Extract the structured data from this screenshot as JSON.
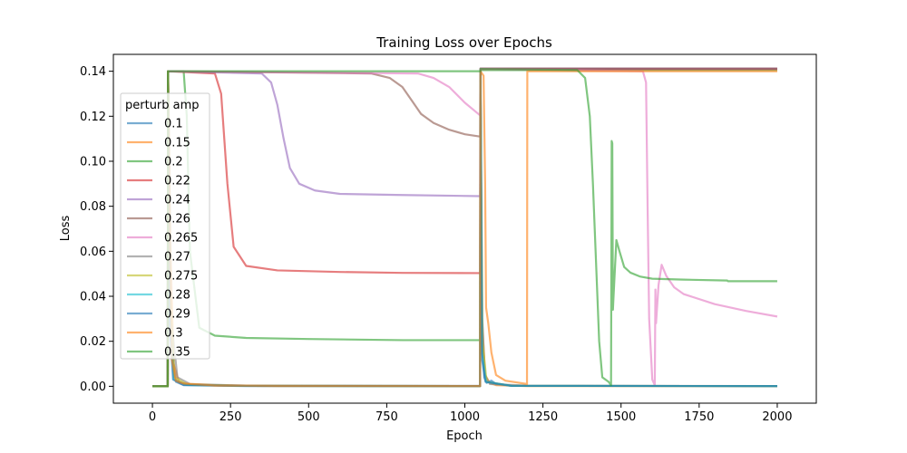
{
  "chart_data": {
    "type": "line",
    "title": "Training Loss over Epochs",
    "xlabel": "Epoch",
    "ylabel": "Loss",
    "xlim": [
      -125,
      2125
    ],
    "ylim": [
      -0.0075,
      0.1475
    ],
    "xticks": [
      0,
      250,
      500,
      750,
      1000,
      1250,
      1500,
      1750,
      2000
    ],
    "yticks": [
      0.0,
      0.02,
      0.04,
      0.06,
      0.08,
      0.1,
      0.12,
      0.14
    ],
    "ytick_labels": [
      "0.00",
      "0.02",
      "0.04",
      "0.06",
      "0.08",
      "0.10",
      "0.12",
      "0.14"
    ],
    "grid": false,
    "legend": {
      "title": "perturb amp",
      "position": "upper-left"
    },
    "series": [
      {
        "name": "0.1",
        "color": "#1f77b4",
        "points": [
          [
            0,
            0
          ],
          [
            49,
            0
          ],
          [
            50,
            0.14
          ],
          [
            60,
            0.02
          ],
          [
            75,
            0.002
          ],
          [
            100,
            0.0005
          ],
          [
            300,
            0.0001
          ],
          [
            1049,
            0.0001
          ],
          [
            1050,
            0.14
          ],
          [
            1055,
            0.02
          ],
          [
            1062,
            0.004
          ],
          [
            1070,
            0.0015
          ],
          [
            1085,
            0.0025
          ],
          [
            1100,
            0.001
          ],
          [
            1150,
            0.0002
          ],
          [
            2000,
            0.0001
          ]
        ]
      },
      {
        "name": "0.15",
        "color": "#ff7f0e",
        "points": [
          [
            0,
            0
          ],
          [
            49,
            0
          ],
          [
            50,
            0.14
          ],
          [
            58,
            0.06
          ],
          [
            68,
            0.01
          ],
          [
            85,
            0.0018
          ],
          [
            120,
            0.0008
          ],
          [
            200,
            0.0003
          ],
          [
            400,
            0.0001
          ],
          [
            1049,
            0.0001
          ],
          [
            1050,
            0.14
          ],
          [
            1055,
            0.03
          ],
          [
            1065,
            0.005
          ],
          [
            1080,
            0.0015
          ],
          [
            1100,
            0.0005
          ],
          [
            1200,
            0.0001
          ],
          [
            2000,
            0.0001
          ]
        ]
      },
      {
        "name": "0.2",
        "color": "#2ca02c",
        "points": [
          [
            0,
            0
          ],
          [
            49,
            0
          ],
          [
            50,
            0.14
          ],
          [
            100,
            0.14
          ],
          [
            110,
            0.12
          ],
          [
            120,
            0.06
          ],
          [
            150,
            0.026
          ],
          [
            200,
            0.0225
          ],
          [
            300,
            0.0215
          ],
          [
            500,
            0.021
          ],
          [
            800,
            0.0205
          ],
          [
            1048,
            0.0205
          ],
          [
            1049,
            0.0205
          ],
          [
            1050,
            0.1405
          ],
          [
            2000,
            0.1405
          ]
        ]
      },
      {
        "name": "0.22",
        "color": "#d62728",
        "points": [
          [
            0,
            0
          ],
          [
            49,
            0
          ],
          [
            50,
            0.14
          ],
          [
            200,
            0.139
          ],
          [
            220,
            0.13
          ],
          [
            240,
            0.09
          ],
          [
            260,
            0.062
          ],
          [
            300,
            0.0535
          ],
          [
            400,
            0.0515
          ],
          [
            600,
            0.0508
          ],
          [
            800,
            0.0504
          ],
          [
            1048,
            0.0503
          ],
          [
            1049,
            0.0503
          ],
          [
            1050,
            0.141
          ],
          [
            2000,
            0.141
          ]
        ]
      },
      {
        "name": "0.24",
        "color": "#9467bd",
        "points": [
          [
            0,
            0
          ],
          [
            49,
            0
          ],
          [
            50,
            0.14
          ],
          [
            350,
            0.139
          ],
          [
            380,
            0.135
          ],
          [
            400,
            0.125
          ],
          [
            420,
            0.11
          ],
          [
            440,
            0.097
          ],
          [
            470,
            0.09
          ],
          [
            520,
            0.087
          ],
          [
            600,
            0.0855
          ],
          [
            800,
            0.085
          ],
          [
            1048,
            0.0845
          ],
          [
            1049,
            0.0845
          ],
          [
            1050,
            0.1412
          ],
          [
            2000,
            0.1412
          ]
        ]
      },
      {
        "name": "0.26",
        "color": "#8c564b",
        "points": [
          [
            0,
            0
          ],
          [
            49,
            0
          ],
          [
            50,
            0.14
          ],
          [
            700,
            0.139
          ],
          [
            760,
            0.137
          ],
          [
            800,
            0.133
          ],
          [
            830,
            0.127
          ],
          [
            860,
            0.121
          ],
          [
            900,
            0.117
          ],
          [
            950,
            0.114
          ],
          [
            1000,
            0.112
          ],
          [
            1048,
            0.111
          ],
          [
            1049,
            0.111
          ],
          [
            1050,
            0.1412
          ],
          [
            2000,
            0.1412
          ]
        ]
      },
      {
        "name": "0.265",
        "color": "#e377c2",
        "points": [
          [
            0,
            0
          ],
          [
            49,
            0
          ],
          [
            50,
            0.14
          ],
          [
            850,
            0.139
          ],
          [
            900,
            0.137
          ],
          [
            950,
            0.133
          ],
          [
            1000,
            0.126
          ],
          [
            1048,
            0.1205
          ],
          [
            1049,
            0.1205
          ],
          [
            1050,
            0.141
          ],
          [
            1570,
            0.14
          ],
          [
            1580,
            0.135
          ],
          [
            1585,
            0.08
          ],
          [
            1590,
            0.03
          ],
          [
            1600,
            0.003
          ],
          [
            1608,
            0.0005
          ],
          [
            1610,
            0.043
          ],
          [
            1612,
            0.028
          ],
          [
            1620,
            0.045
          ],
          [
            1630,
            0.054
          ],
          [
            1645,
            0.049
          ],
          [
            1670,
            0.044
          ],
          [
            1700,
            0.041
          ],
          [
            1800,
            0.0365
          ],
          [
            1900,
            0.0335
          ],
          [
            2000,
            0.031
          ]
        ]
      },
      {
        "name": "0.27",
        "color": "#7f7f7f",
        "points": [
          [
            0,
            0
          ],
          [
            49,
            0
          ],
          [
            50,
            0.14
          ],
          [
            60,
            0.03
          ],
          [
            80,
            0.004
          ],
          [
            120,
            0.001
          ],
          [
            300,
            0.0003
          ],
          [
            1049,
            0.0002
          ],
          [
            1050,
            0.14
          ],
          [
            1056,
            0.03
          ],
          [
            1064,
            0.005
          ],
          [
            1080,
            0.001
          ],
          [
            1200,
            0.0003
          ],
          [
            2000,
            0.0001
          ]
        ]
      },
      {
        "name": "0.275",
        "color": "#bcbd22",
        "points": [
          [
            0,
            0
          ],
          [
            49,
            0
          ],
          [
            50,
            0.14
          ],
          [
            58,
            0.04
          ],
          [
            70,
            0.004
          ],
          [
            110,
            0.0008
          ],
          [
            300,
            0.0002
          ],
          [
            1049,
            0.0001
          ],
          [
            1050,
            0.14
          ],
          [
            1056,
            0.02
          ],
          [
            1070,
            0.002
          ],
          [
            1150,
            0.0002
          ],
          [
            2000,
            0.0001
          ]
        ]
      },
      {
        "name": "0.28",
        "color": "#17becf",
        "points": [
          [
            0,
            0
          ],
          [
            49,
            0
          ],
          [
            50,
            0.14
          ],
          [
            57,
            0.03
          ],
          [
            68,
            0.003
          ],
          [
            110,
            0.0006
          ],
          [
            300,
            0.0002
          ],
          [
            1049,
            0.0001
          ],
          [
            1050,
            0.14
          ],
          [
            1055,
            0.015
          ],
          [
            1068,
            0.002
          ],
          [
            1150,
            0.0002
          ],
          [
            2000,
            0.0001
          ]
        ]
      },
      {
        "name": "0.29",
        "color": "#1f77b4",
        "points": [
          [
            0,
            0
          ],
          [
            49,
            0
          ],
          [
            50,
            0.14
          ],
          [
            56,
            0.025
          ],
          [
            66,
            0.003
          ],
          [
            100,
            0.0006
          ],
          [
            300,
            0.0002
          ],
          [
            1049,
            0.0001
          ],
          [
            1050,
            0.14
          ],
          [
            1055,
            0.012
          ],
          [
            1066,
            0.002
          ],
          [
            1150,
            0.0002
          ],
          [
            2000,
            0.0001
          ]
        ]
      },
      {
        "name": "0.3",
        "color": "#ff7f0e",
        "points": [
          [
            0,
            0
          ],
          [
            49,
            0
          ],
          [
            50,
            0.14
          ],
          [
            56,
            0.06
          ],
          [
            62,
            0.012
          ],
          [
            75,
            0.0025
          ],
          [
            100,
            0.0012
          ],
          [
            200,
            0.0004
          ],
          [
            400,
            0.0002
          ],
          [
            1049,
            0.0001
          ],
          [
            1050,
            0.14
          ],
          [
            1060,
            0.138
          ],
          [
            1065,
            0.09
          ],
          [
            1068,
            0.035
          ],
          [
            1075,
            0.028
          ],
          [
            1085,
            0.015
          ],
          [
            1100,
            0.005
          ],
          [
            1130,
            0.0025
          ],
          [
            1190,
            0.0012
          ],
          [
            1199,
            0.001
          ],
          [
            1200,
            0.14
          ],
          [
            2000,
            0.14
          ]
        ]
      },
      {
        "name": "0.35",
        "color": "#2ca02c",
        "points": [
          [
            0,
            0
          ],
          [
            49,
            0
          ],
          [
            50,
            0.14
          ],
          [
            1049,
            0.14
          ],
          [
            1050,
            0.141
          ],
          [
            1360,
            0.1405
          ],
          [
            1385,
            0.137
          ],
          [
            1400,
            0.12
          ],
          [
            1410,
            0.09
          ],
          [
            1420,
            0.055
          ],
          [
            1430,
            0.02
          ],
          [
            1440,
            0.004
          ],
          [
            1460,
            0.002
          ],
          [
            1468,
            0.0005
          ],
          [
            1470,
            0.109
          ],
          [
            1472,
            0.108
          ],
          [
            1474,
            0.034
          ],
          [
            1476,
            0.04
          ],
          [
            1485,
            0.065
          ],
          [
            1495,
            0.06
          ],
          [
            1510,
            0.053
          ],
          [
            1530,
            0.0505
          ],
          [
            1560,
            0.0488
          ],
          [
            1600,
            0.0478
          ],
          [
            1700,
            0.0474
          ],
          [
            1840,
            0.047
          ],
          [
            1842,
            0.0467
          ],
          [
            2000,
            0.0467
          ]
        ]
      }
    ]
  }
}
